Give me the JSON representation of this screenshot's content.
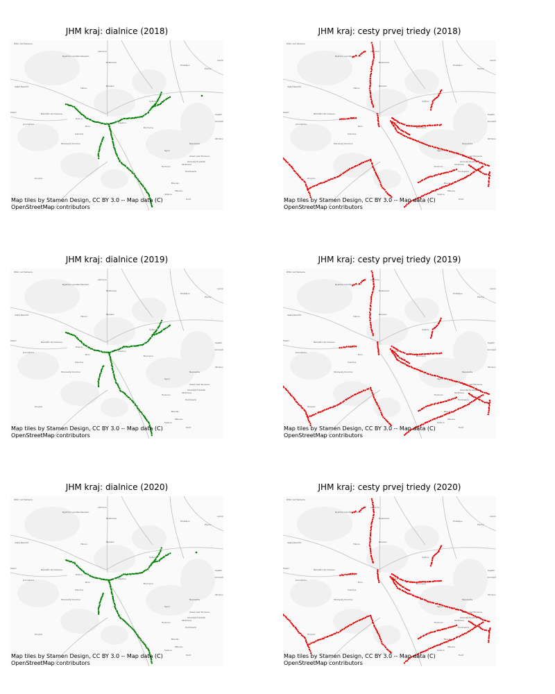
{
  "colors": {
    "dialnice": "#007a00",
    "cesty": "#e00000",
    "water": "#e8e8e8",
    "roads": "#bdbdbd",
    "land": "#f0f0f0"
  },
  "attribution": {
    "line1": "Map tiles by Stamen Design, CC BY 3.0 -- Map data (C)",
    "line2": "OpenStreetMap contributors"
  },
  "place_names": [
    "Žďár nad Sázavou",
    "Bystřice nad Pernštejnem",
    "Letovice",
    "Boskovice",
    "Prostějov",
    "Velké Meziříčí",
    "Tišnov",
    "Blansko",
    "Vyškov",
    "Kojetín",
    "Trebíč",
    "Náměšť nad Oslavou",
    "Rosice",
    "Brno",
    "Ivančice",
    "Moravský Krumlov",
    "Slavkov",
    "Bučovice",
    "Kroměříž",
    "Otrokovice",
    "Napajedla",
    "Uherské Hradiště",
    "Kyjov",
    "Hodonín",
    "Břeclav",
    "Mikulov",
    "Hustopeče",
    "Znojmo",
    "Holíč",
    "Skalica",
    "Veselí nad Moravou",
    "Strážnice",
    "Jaroměřice",
    "Lipník nad Bečvou",
    "Přerov"
  ],
  "panels": [
    {
      "title": "JHM kraj: dialnice (2018)",
      "type": "dialnice"
    },
    {
      "title": "JHM kraj: cesty prvej triedy (2018)",
      "type": "cesty"
    },
    {
      "title": "JHM kraj: dialnice (2019)",
      "type": "dialnice"
    },
    {
      "title": "JHM kraj: cesty prvej triedy (2019)",
      "type": "cesty"
    },
    {
      "title": "JHM kraj: dialnice (2020)",
      "type": "dialnice"
    },
    {
      "title": "JHM kraj: cesty prvej triedy (2020)",
      "type": "cesty"
    }
  ]
}
